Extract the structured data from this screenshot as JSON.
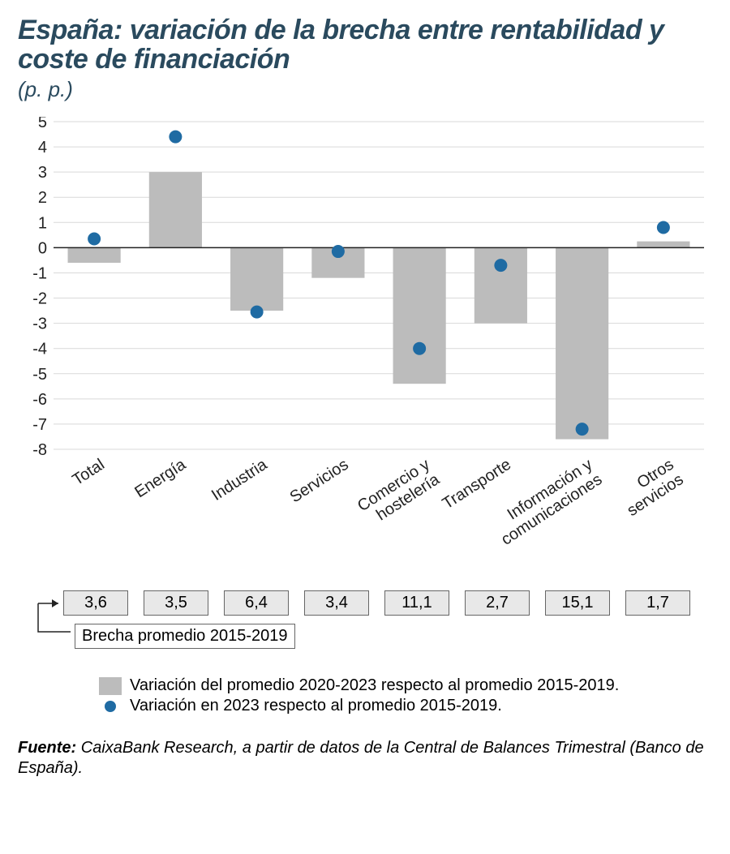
{
  "title": "España: variación de la brecha entre rentabilidad y coste de financiación",
  "subtitle": "(p. p.)",
  "chart": {
    "type": "bar+scatter",
    "background_color": "#ffffff",
    "grid_color": "#d9d9d9",
    "axis_color": "#222222",
    "ylim": [
      -8,
      5
    ],
    "ytick_step": 1,
    "categories": [
      "Total",
      "Energía",
      "Industria",
      "Servicios",
      "Comercio y hostelería",
      "Transporte",
      "Información y comunicaciones",
      "Otros servicios"
    ],
    "bars": {
      "color": "#bcbcbc",
      "width": 0.65,
      "values": [
        -0.6,
        3.0,
        -2.5,
        -1.2,
        -5.4,
        -3.0,
        -7.6,
        0.25
      ]
    },
    "dots": {
      "color": "#1f6ba3",
      "radius": 8,
      "values": [
        0.35,
        4.4,
        -2.55,
        -0.15,
        -4.0,
        -0.7,
        -7.2,
        0.8
      ]
    },
    "label_fontsize": 20,
    "category_label_rotation_deg": -33
  },
  "baseline": {
    "label": "Brecha promedio 2015-2019",
    "values": [
      "3,6",
      "3,5",
      "6,4",
      "3,4",
      "11,1",
      "2,7",
      "15,1",
      "1,7"
    ],
    "cell_bg": "#e8e8e8",
    "cell_border": "#666666"
  },
  "legend": {
    "bar_label": "Variación del promedio 2020-2023 respecto al promedio 2015-2019.",
    "dot_label": "Variación en 2023 respecto al promedio 2015-2019."
  },
  "source_label": "Fuente:",
  "source_text": " CaixaBank Research, a partir de datos de la Central de Balances Trimestral (Banco de España)."
}
